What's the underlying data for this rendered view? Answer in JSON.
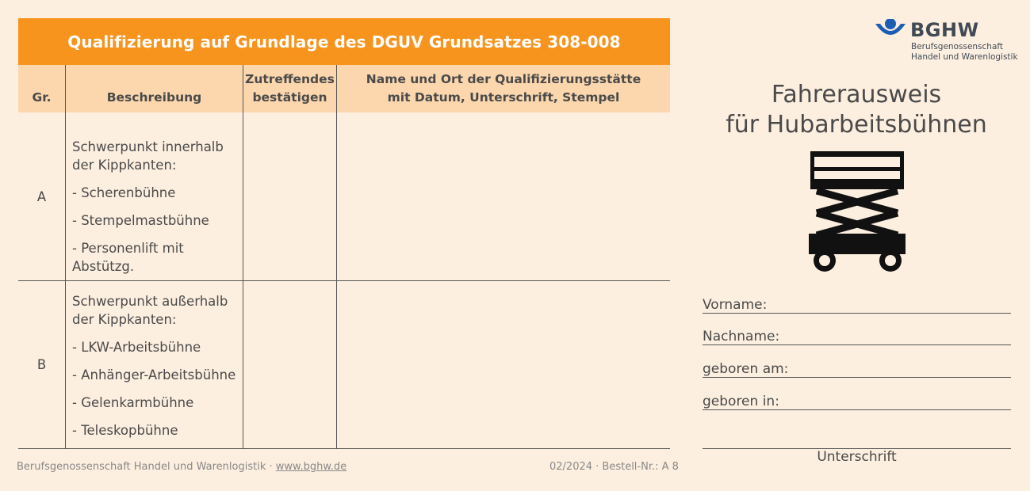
{
  "table": {
    "title": "Qualifizierung auf Grundlage des DGUV Grundsatzes 308-008",
    "headers": {
      "group": "Gr.",
      "description": "Beschreibung",
      "confirm_line1": "Zutreffendes",
      "confirm_line2": "bestätigen",
      "place_line1": "Name und Ort der Qualifizierungsstätte",
      "place_line2": "mit Datum, Unterschrift, Stempel"
    },
    "rows": [
      {
        "group": "A",
        "desc_line1": "Schwerpunkt innerhalb",
        "desc_line2": "der Kippkanten:",
        "items": [
          "- Scherenbühne",
          "- Stempelmastbühne",
          "- Personenlift mit Abstützg."
        ]
      },
      {
        "group": "B",
        "desc_line1": "Schwerpunkt außerhalb",
        "desc_line2": "der Kippkanten:",
        "items": [
          "- LKW-Arbeitsbühne",
          "- Anhänger-Arbeitsbühne",
          "- Gelenkarmbühne",
          "- Teleskopbühne"
        ]
      }
    ]
  },
  "footer": {
    "org": "Berufsgenossenschaft Handel und Warenlogistik · ",
    "link": "www.bghw.de",
    "order": "02/2024 · Bestell-Nr.: A 8"
  },
  "card": {
    "logo_main": "BGHW",
    "logo_sub1": "Berufsgenossenschaft",
    "logo_sub2": "Handel und Warenlogistik",
    "title_line1": "Fahrerausweis",
    "title_line2": "für Hubarbeitsbühnen",
    "icon": "scissor-lift-icon",
    "fields": {
      "first_name": "Vorname:",
      "last_name": "Nachname:",
      "born_on": "geboren am:",
      "born_in": "geboren in:"
    },
    "signature_label": "Unterschrift"
  },
  "colors": {
    "background": "#fdefe0",
    "title_bar": "#f7941d",
    "header_row": "#fcd7ad",
    "logo_blue": "#1a5fb4"
  }
}
